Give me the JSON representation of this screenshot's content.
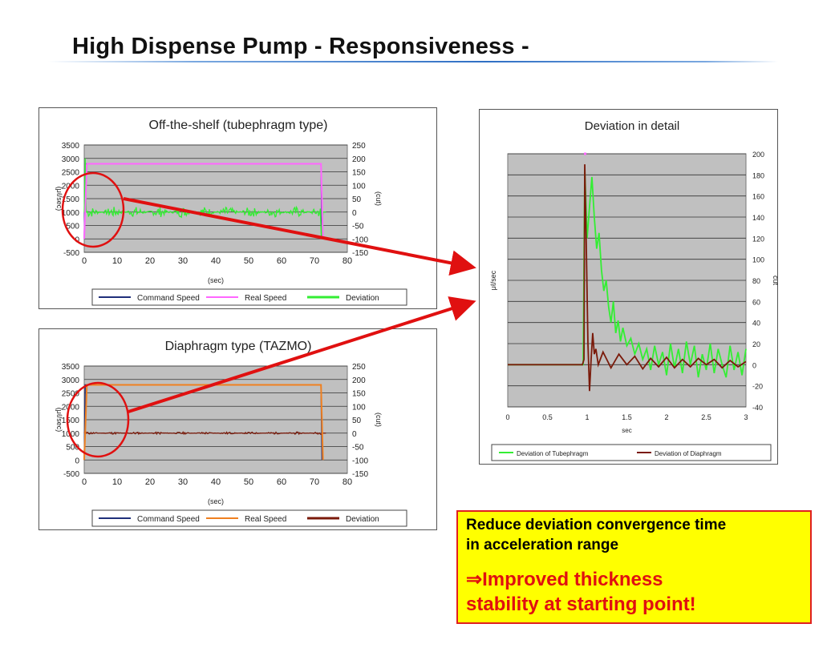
{
  "page": {
    "title": "High Dispense Pump - Responsiveness -"
  },
  "colors": {
    "plot_bg": "#c0c0c0",
    "command_speed": "#1f2f7a",
    "real_speed_tube": "#ff66ff",
    "deviation_tube": "#33ee33",
    "real_speed_dia": "#f08020",
    "deviation_dia": "#7a1a0a",
    "arrow": "#e01010",
    "note_bg": "#ffff00"
  },
  "chart_data": [
    {
      "id": "tube",
      "type": "line",
      "title": "Off-the-shelf (tubephragm type)",
      "xlabel": "(sec)",
      "ylabel": "(μℓ/sec)",
      "y2label": "(cut)",
      "xlim": [
        0,
        80
      ],
      "ylim": [
        -500,
        3500
      ],
      "y2lim": [
        -150,
        250
      ],
      "x_ticks": [
        "0",
        "10",
        "20",
        "30",
        "40",
        "50",
        "60",
        "70",
        "80"
      ],
      "y_ticks": [
        "-500",
        "0",
        "500",
        "1000",
        "1500",
        "2000",
        "2500",
        "3000",
        "3500"
      ],
      "y2_ticks": [
        "-150",
        "-100",
        "-50",
        "0",
        "50",
        "100",
        "150",
        "200",
        "250"
      ],
      "legend": [
        "Command Speed",
        "Real Speed",
        "Deviation"
      ],
      "legend_position": "bottom",
      "grid": true,
      "series": [
        {
          "name": "Command Speed",
          "shape": [
            [
              0,
              0
            ],
            [
              0.3,
              2800
            ],
            [
              72,
              2800
            ],
            [
              72.3,
              0
            ]
          ]
        },
        {
          "name": "Real Speed",
          "shape": [
            [
              0,
              0
            ],
            [
              0.8,
              2800
            ],
            [
              72,
              2800
            ],
            [
              72.6,
              0
            ]
          ]
        },
        {
          "name": "Deviation",
          "axis": "y2",
          "baseline": 0,
          "noise_amplitude": 20,
          "start_spike": 200,
          "end_spike": -100
        }
      ]
    },
    {
      "id": "dia",
      "type": "line",
      "title": "Diaphragm type (TAZMO)",
      "xlabel": "(sec)",
      "ylabel": "(μℓ/sec)",
      "y2label": "(cut)",
      "xlim": [
        0,
        80
      ],
      "ylim": [
        -500,
        3500
      ],
      "y2lim": [
        -150,
        250
      ],
      "x_ticks": [
        "0",
        "10",
        "20",
        "30",
        "40",
        "50",
        "60",
        "70",
        "80"
      ],
      "y_ticks": [
        "-500",
        "0",
        "500",
        "1000",
        "1500",
        "2000",
        "2500",
        "3000",
        "3500"
      ],
      "y2_ticks": [
        "-150",
        "-100",
        "-50",
        "0",
        "50",
        "100",
        "150",
        "200",
        "250"
      ],
      "legend": [
        "Command Speed",
        "Real Speed",
        "Deviation"
      ],
      "legend_position": "bottom",
      "grid": true,
      "series": [
        {
          "name": "Command Speed",
          "shape": [
            [
              0,
              0
            ],
            [
              0.3,
              2800
            ],
            [
              72,
              2800
            ],
            [
              72.3,
              0
            ]
          ]
        },
        {
          "name": "Real Speed",
          "shape": [
            [
              0,
              0
            ],
            [
              0.8,
              2800
            ],
            [
              72,
              2800
            ],
            [
              72.6,
              0
            ]
          ]
        },
        {
          "name": "Deviation",
          "axis": "y2",
          "baseline": 0,
          "noise_amplitude": 4,
          "start_spike": 10,
          "end_spike": -5
        }
      ]
    },
    {
      "id": "detail",
      "type": "line",
      "title": "Deviation in detail",
      "xlabel": "sec",
      "ylabel": "μℓ/sec",
      "y2label": "cut",
      "xlim": [
        0,
        3
      ],
      "y2lim": [
        -40,
        200
      ],
      "x_ticks": [
        "0",
        "0.5",
        "1",
        "1.5",
        "2",
        "2.5",
        "3"
      ],
      "y2_ticks": [
        "-40",
        "-20",
        "0",
        "20",
        "40",
        "60",
        "80",
        "100",
        "120",
        "140",
        "160",
        "180",
        "200"
      ],
      "legend": [
        "Deviation of Tubephragm",
        "Deviation of Diaphragm"
      ],
      "legend_position": "bottom",
      "grid": true,
      "series": [
        {
          "name": "Real Speed",
          "points": [
            [
              0.96,
              200
            ],
            [
              0.99,
              200
            ]
          ]
        },
        {
          "name": "Deviation of Tubephragm",
          "points": [
            [
              0,
              0
            ],
            [
              0.9,
              0
            ],
            [
              0.95,
              0
            ],
            [
              0.97,
              185
            ],
            [
              1.0,
              120
            ],
            [
              1.03,
              150
            ],
            [
              1.06,
              178
            ],
            [
              1.09,
              140
            ],
            [
              1.12,
              110
            ],
            [
              1.15,
              125
            ],
            [
              1.18,
              90
            ],
            [
              1.21,
              70
            ],
            [
              1.24,
              80
            ],
            [
              1.27,
              55
            ],
            [
              1.3,
              40
            ],
            [
              1.33,
              60
            ],
            [
              1.36,
              30
            ],
            [
              1.39,
              42
            ],
            [
              1.42,
              22
            ],
            [
              1.45,
              35
            ],
            [
              1.5,
              18
            ],
            [
              1.55,
              25
            ],
            [
              1.6,
              10
            ],
            [
              1.65,
              20
            ],
            [
              1.7,
              5
            ],
            [
              1.75,
              15
            ],
            [
              1.8,
              -5
            ],
            [
              1.85,
              18
            ],
            [
              1.9,
              0
            ],
            [
              1.95,
              12
            ],
            [
              2.0,
              -10
            ],
            [
              2.05,
              20
            ],
            [
              2.1,
              -3
            ],
            [
              2.15,
              15
            ],
            [
              2.2,
              -8
            ],
            [
              2.25,
              22
            ],
            [
              2.3,
              0
            ],
            [
              2.35,
              18
            ],
            [
              2.4,
              -12
            ],
            [
              2.45,
              10
            ],
            [
              2.5,
              -5
            ],
            [
              2.55,
              20
            ],
            [
              2.6,
              -8
            ],
            [
              2.65,
              15
            ],
            [
              2.7,
              0
            ],
            [
              2.75,
              -12
            ],
            [
              2.8,
              18
            ],
            [
              2.85,
              -5
            ],
            [
              2.9,
              12
            ],
            [
              2.95,
              -10
            ],
            [
              3.0,
              15
            ]
          ]
        },
        {
          "name": "Deviation of Diaphragm",
          "points": [
            [
              0,
              0
            ],
            [
              0.94,
              0
            ],
            [
              0.96,
              5
            ],
            [
              0.97,
              190
            ],
            [
              0.99,
              110
            ],
            [
              1.01,
              20
            ],
            [
              1.03,
              -25
            ],
            [
              1.05,
              5
            ],
            [
              1.07,
              30
            ],
            [
              1.09,
              10
            ],
            [
              1.11,
              15
            ],
            [
              1.14,
              0
            ],
            [
              1.2,
              12
            ],
            [
              1.3,
              -3
            ],
            [
              1.4,
              10
            ],
            [
              1.5,
              0
            ],
            [
              1.6,
              8
            ],
            [
              1.7,
              -4
            ],
            [
              1.8,
              6
            ],
            [
              1.9,
              -2
            ],
            [
              2.0,
              7
            ],
            [
              2.1,
              -3
            ],
            [
              2.2,
              5
            ],
            [
              2.3,
              -2
            ],
            [
              2.4,
              6
            ],
            [
              2.5,
              0
            ],
            [
              2.6,
              5
            ],
            [
              2.7,
              -3
            ],
            [
              2.8,
              4
            ],
            [
              2.9,
              -2
            ],
            [
              3.0,
              3
            ]
          ]
        }
      ]
    }
  ],
  "note": {
    "line1": "Reduce deviation convergence time",
    "line2": "in acceleration range",
    "line3": "⇒Improved thickness",
    "line4": "stability at starting point!"
  }
}
